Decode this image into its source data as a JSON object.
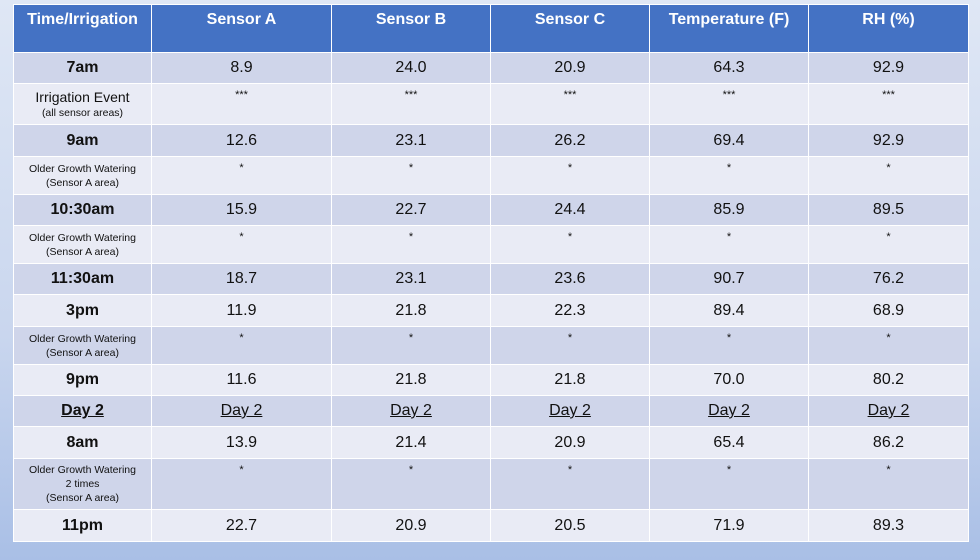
{
  "table": {
    "header": [
      "Time/Irrigation",
      "Sensor A",
      "Sensor B",
      "Sensor C",
      "Temperature (F)",
      "RH (%)"
    ],
    "rows": [
      [
        "7am",
        "8.9",
        "24.0",
        "20.9",
        "64.3",
        "92.9"
      ],
      [
        [
          "Irrigation Event",
          "(all sensor areas)"
        ],
        "***",
        "***",
        "***",
        "***",
        "***"
      ],
      [
        "9am",
        "12.6",
        "23.1",
        "26.2",
        "69.4",
        "92.9"
      ],
      [
        [
          "Older Growth Watering",
          "(Sensor A area)"
        ],
        "*",
        "*",
        "*",
        "*",
        "*"
      ],
      [
        "10:30am",
        "15.9",
        "22.7",
        "24.4",
        "85.9",
        "89.5"
      ],
      [
        [
          "Older Growth Watering",
          "(Sensor A area)"
        ],
        "*",
        "*",
        "*",
        "*",
        "*"
      ],
      [
        "11:30am",
        "18.7",
        "23.1",
        "23.6",
        "90.7",
        "76.2"
      ],
      [
        "3pm",
        "11.9",
        "21.8",
        "22.3",
        "89.4",
        "68.9"
      ],
      [
        [
          "Older Growth Watering",
          "(Sensor A area)"
        ],
        "*",
        "*",
        "*",
        "*",
        "*"
      ],
      [
        "9pm",
        "11.6",
        "21.8",
        "21.8",
        "70.0",
        "80.2"
      ],
      [
        "Day 2",
        "Day 2",
        "Day 2",
        "Day 2",
        "Day 2",
        "Day 2"
      ],
      [
        "8am",
        "13.9",
        "21.4",
        "20.9",
        "65.4",
        "86.2"
      ],
      [
        [
          "Older Growth Watering",
          "2 times",
          "(Sensor A area)"
        ],
        "*",
        "*",
        "*",
        "*",
        "*"
      ],
      [
        "11pm",
        "22.7",
        "20.9",
        "20.5",
        "71.9",
        "89.3"
      ]
    ]
  }
}
